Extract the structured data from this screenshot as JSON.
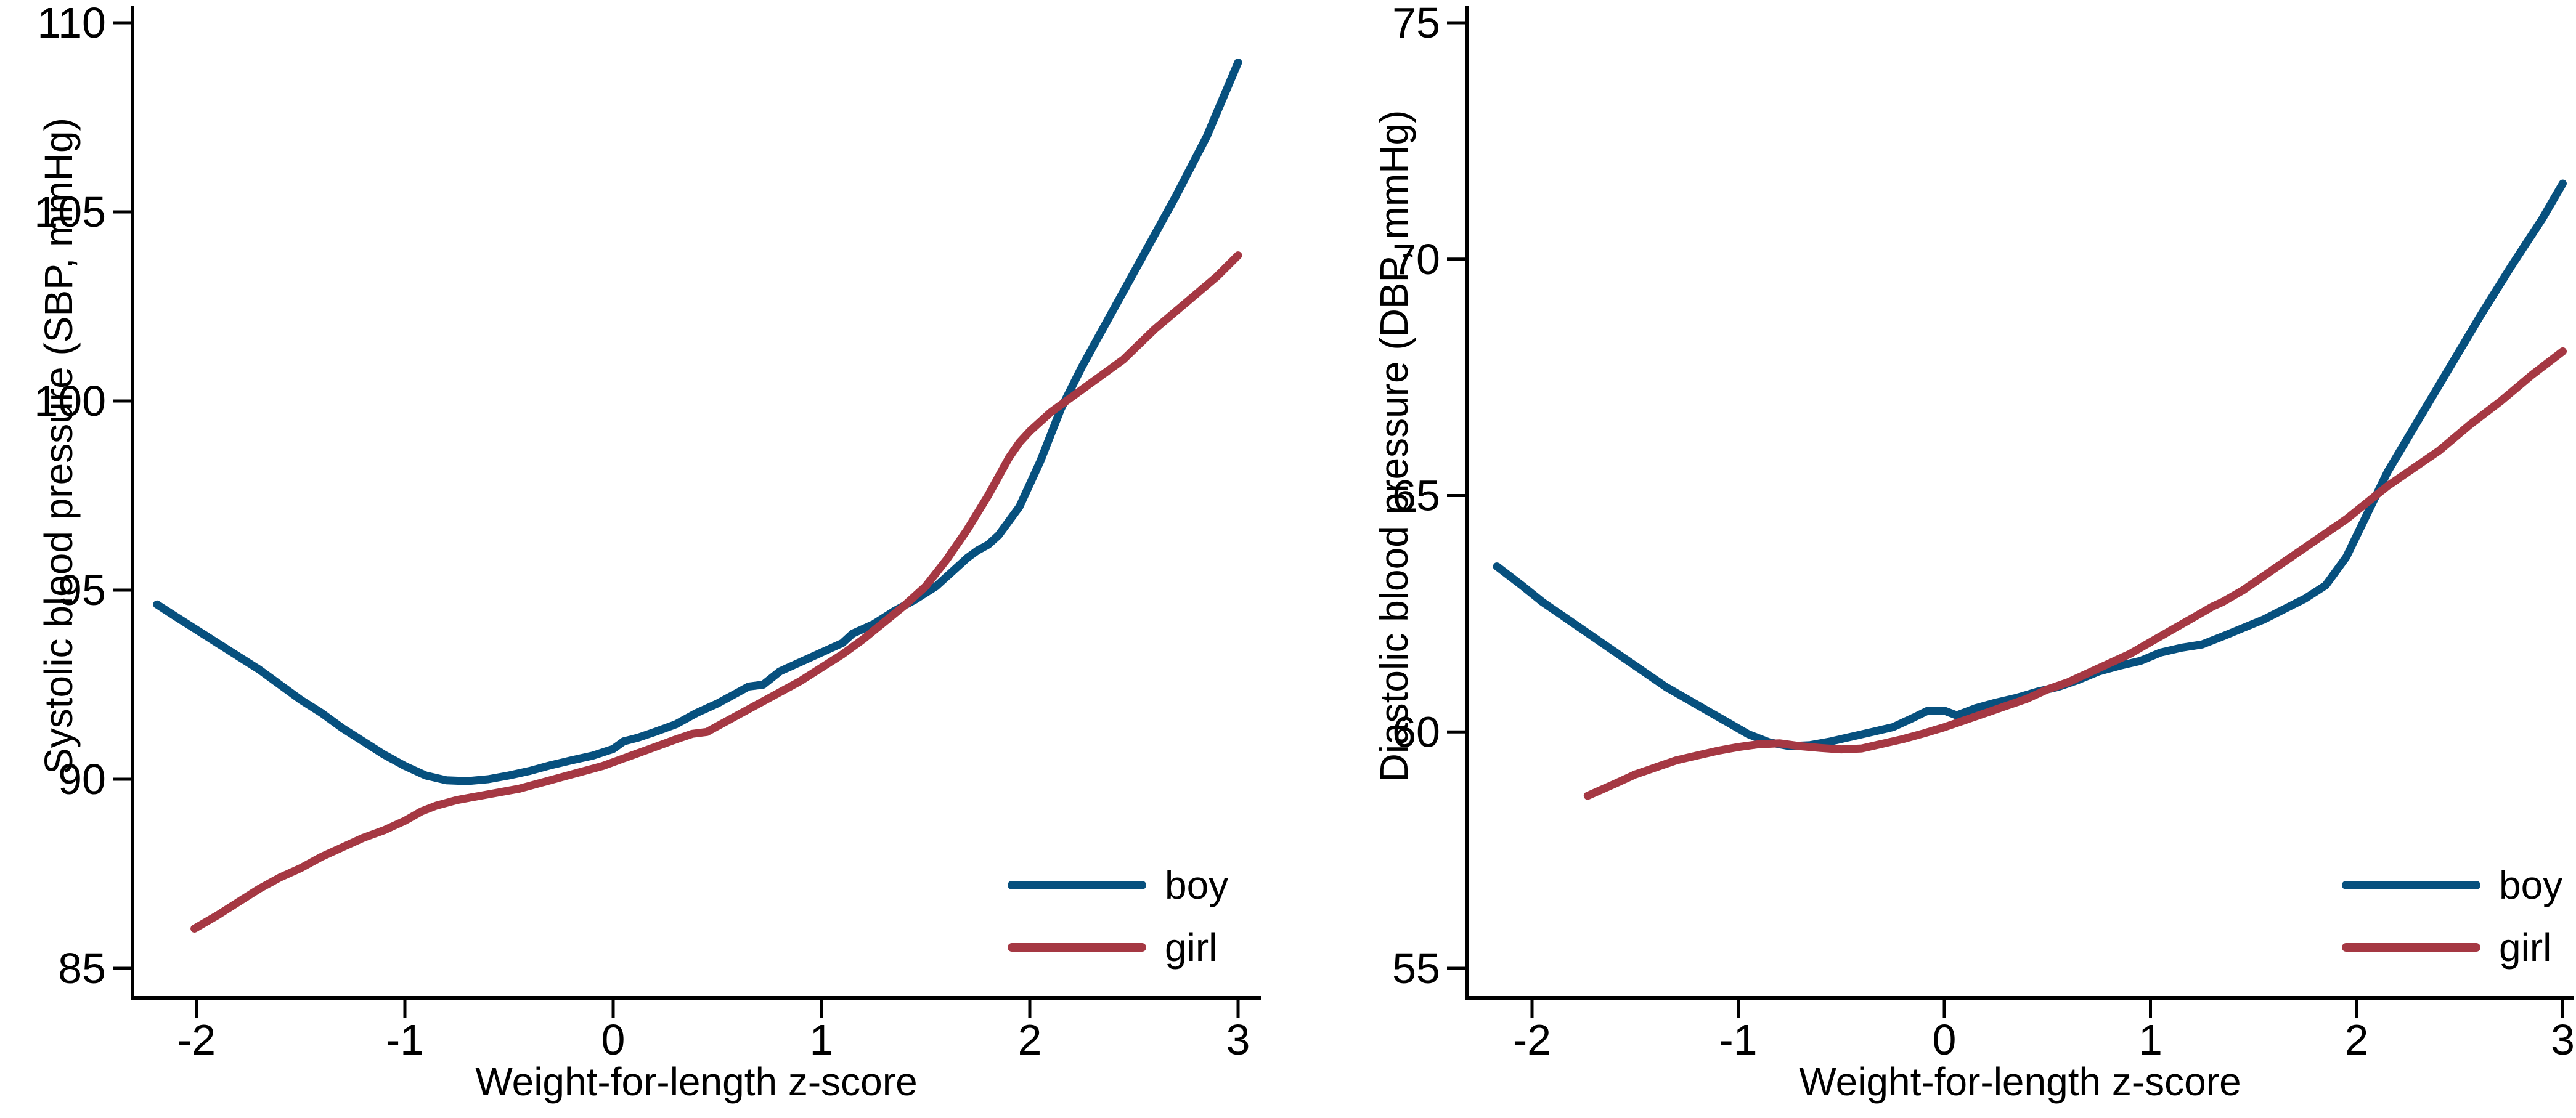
{
  "page": {
    "background": "#ffffff"
  },
  "colors": {
    "boy": "#07507e",
    "girl": "#a53843",
    "axis": "#000000",
    "text": "#000000"
  },
  "chart_data": [
    {
      "id": "sbp",
      "type": "line",
      "title": "",
      "xlabel": "Weight-for-length z-score",
      "ylabel": "Systolic blood pressure (SBP, mmHg)",
      "xlim": [
        -2.31,
        3.11
      ],
      "ylim": [
        84.2,
        110.4
      ],
      "xticks": [
        -2,
        -1,
        0,
        1,
        2,
        3
      ],
      "yticks": [
        85,
        90,
        95,
        100,
        105,
        110
      ],
      "grid": false,
      "legend_position": "inside-bottom-right",
      "series": [
        {
          "name": "boy",
          "color": "#07507e",
          "points": [
            [
              -2.19,
              94.62
            ],
            [
              -2.1,
              94.3
            ],
            [
              -2.0,
              93.95
            ],
            [
              -1.9,
              93.6
            ],
            [
              -1.8,
              93.25
            ],
            [
              -1.7,
              92.9
            ],
            [
              -1.6,
              92.5
            ],
            [
              -1.5,
              92.1
            ],
            [
              -1.4,
              91.75
            ],
            [
              -1.3,
              91.35
            ],
            [
              -1.2,
              91.0
            ],
            [
              -1.1,
              90.65
            ],
            [
              -1.0,
              90.35
            ],
            [
              -0.9,
              90.1
            ],
            [
              -0.8,
              89.97
            ],
            [
              -0.7,
              89.95
            ],
            [
              -0.6,
              90.0
            ],
            [
              -0.5,
              90.1
            ],
            [
              -0.4,
              90.22
            ],
            [
              -0.3,
              90.37
            ],
            [
              -0.2,
              90.5
            ],
            [
              -0.1,
              90.62
            ],
            [
              0.0,
              90.8
            ],
            [
              0.05,
              91.0
            ],
            [
              0.12,
              91.1
            ],
            [
              0.2,
              91.25
            ],
            [
              0.3,
              91.45
            ],
            [
              0.4,
              91.75
            ],
            [
              0.5,
              92.0
            ],
            [
              0.6,
              92.3
            ],
            [
              0.65,
              92.45
            ],
            [
              0.72,
              92.5
            ],
            [
              0.8,
              92.85
            ],
            [
              0.9,
              93.1
            ],
            [
              1.0,
              93.35
            ],
            [
              1.1,
              93.6
            ],
            [
              1.15,
              93.85
            ],
            [
              1.25,
              94.1
            ],
            [
              1.35,
              94.45
            ],
            [
              1.45,
              94.75
            ],
            [
              1.55,
              95.1
            ],
            [
              1.65,
              95.6
            ],
            [
              1.7,
              95.85
            ],
            [
              1.75,
              96.05
            ],
            [
              1.8,
              96.2
            ],
            [
              1.85,
              96.45
            ],
            [
              1.95,
              97.2
            ],
            [
              2.05,
              98.4
            ],
            [
              2.15,
              99.8
            ],
            [
              2.25,
              100.9
            ],
            [
              2.4,
              102.4
            ],
            [
              2.55,
              103.9
            ],
            [
              2.7,
              105.4
            ],
            [
              2.85,
              107.0
            ],
            [
              3.0,
              108.95
            ]
          ]
        },
        {
          "name": "girl",
          "color": "#a53843",
          "points": [
            [
              -2.01,
              86.05
            ],
            [
              -1.9,
              86.4
            ],
            [
              -1.8,
              86.75
            ],
            [
              -1.7,
              87.1
            ],
            [
              -1.6,
              87.4
            ],
            [
              -1.5,
              87.65
            ],
            [
              -1.4,
              87.95
            ],
            [
              -1.3,
              88.2
            ],
            [
              -1.2,
              88.45
            ],
            [
              -1.1,
              88.65
            ],
            [
              -1.0,
              88.9
            ],
            [
              -0.92,
              89.15
            ],
            [
              -0.85,
              89.3
            ],
            [
              -0.75,
              89.45
            ],
            [
              -0.65,
              89.55
            ],
            [
              -0.55,
              89.65
            ],
            [
              -0.45,
              89.75
            ],
            [
              -0.35,
              89.9
            ],
            [
              -0.25,
              90.05
            ],
            [
              -0.15,
              90.2
            ],
            [
              -0.05,
              90.35
            ],
            [
              0.05,
              90.55
            ],
            [
              0.15,
              90.75
            ],
            [
              0.25,
              90.95
            ],
            [
              0.3,
              91.05
            ],
            [
              0.38,
              91.2
            ],
            [
              0.45,
              91.25
            ],
            [
              0.5,
              91.4
            ],
            [
              0.6,
              91.7
            ],
            [
              0.7,
              92.0
            ],
            [
              0.8,
              92.3
            ],
            [
              0.9,
              92.6
            ],
            [
              1.0,
              92.95
            ],
            [
              1.1,
              93.3
            ],
            [
              1.2,
              93.7
            ],
            [
              1.3,
              94.15
            ],
            [
              1.4,
              94.6
            ],
            [
              1.5,
              95.1
            ],
            [
              1.6,
              95.8
            ],
            [
              1.7,
              96.6
            ],
            [
              1.8,
              97.5
            ],
            [
              1.9,
              98.5
            ],
            [
              1.95,
              98.9
            ],
            [
              2.0,
              99.2
            ],
            [
              2.1,
              99.7
            ],
            [
              2.2,
              100.1
            ],
            [
              2.3,
              100.5
            ],
            [
              2.45,
              101.1
            ],
            [
              2.6,
              101.9
            ],
            [
              2.75,
              102.6
            ],
            [
              2.9,
              103.3
            ],
            [
              3.0,
              103.85
            ]
          ]
        }
      ]
    },
    {
      "id": "dbp",
      "type": "line",
      "title": "",
      "xlabel": "Weight-for-length z-score",
      "ylabel": "Diastolic blood pressure (DBP, mmHg)",
      "xlim": [
        -2.32,
        3.05
      ],
      "ylim": [
        54.3,
        75.35
      ],
      "xticks": [
        -2,
        -1,
        0,
        1,
        2,
        3
      ],
      "yticks": [
        55,
        60,
        65,
        70,
        75
      ],
      "grid": false,
      "legend_position": "inside-bottom-right",
      "series": [
        {
          "name": "boy",
          "color": "#07507e",
          "points": [
            [
              -2.17,
              63.5
            ],
            [
              -2.05,
              63.1
            ],
            [
              -1.95,
              62.75
            ],
            [
              -1.85,
              62.45
            ],
            [
              -1.75,
              62.15
            ],
            [
              -1.65,
              61.85
            ],
            [
              -1.55,
              61.55
            ],
            [
              -1.45,
              61.25
            ],
            [
              -1.35,
              60.95
            ],
            [
              -1.25,
              60.7
            ],
            [
              -1.15,
              60.45
            ],
            [
              -1.05,
              60.2
            ],
            [
              -0.95,
              59.95
            ],
            [
              -0.85,
              59.78
            ],
            [
              -0.75,
              59.7
            ],
            [
              -0.65,
              59.72
            ],
            [
              -0.55,
              59.8
            ],
            [
              -0.45,
              59.9
            ],
            [
              -0.35,
              60.0
            ],
            [
              -0.25,
              60.1
            ],
            [
              -0.15,
              60.3
            ],
            [
              -0.08,
              60.45
            ],
            [
              0.0,
              60.45
            ],
            [
              0.06,
              60.35
            ],
            [
              0.15,
              60.5
            ],
            [
              0.25,
              60.62
            ],
            [
              0.35,
              60.72
            ],
            [
              0.45,
              60.85
            ],
            [
              0.55,
              60.95
            ],
            [
              0.65,
              61.1
            ],
            [
              0.75,
              61.28
            ],
            [
              0.85,
              61.4
            ],
            [
              0.95,
              61.5
            ],
            [
              1.05,
              61.68
            ],
            [
              1.15,
              61.78
            ],
            [
              1.25,
              61.85
            ],
            [
              1.35,
              62.02
            ],
            [
              1.45,
              62.2
            ],
            [
              1.55,
              62.38
            ],
            [
              1.65,
              62.6
            ],
            [
              1.75,
              62.82
            ],
            [
              1.85,
              63.1
            ],
            [
              1.95,
              63.7
            ],
            [
              2.05,
              64.6
            ],
            [
              2.15,
              65.5
            ],
            [
              2.3,
              66.6
            ],
            [
              2.45,
              67.7
            ],
            [
              2.6,
              68.8
            ],
            [
              2.75,
              69.85
            ],
            [
              2.9,
              70.85
            ],
            [
              3.0,
              71.6
            ]
          ]
        },
        {
          "name": "girl",
          "color": "#a53843",
          "points": [
            [
              -1.73,
              58.65
            ],
            [
              -1.6,
              58.9
            ],
            [
              -1.5,
              59.1
            ],
            [
              -1.4,
              59.25
            ],
            [
              -1.3,
              59.4
            ],
            [
              -1.2,
              59.5
            ],
            [
              -1.1,
              59.6
            ],
            [
              -1.0,
              59.68
            ],
            [
              -0.9,
              59.74
            ],
            [
              -0.8,
              59.76
            ],
            [
              -0.7,
              59.7
            ],
            [
              -0.6,
              59.66
            ],
            [
              -0.5,
              59.63
            ],
            [
              -0.4,
              59.65
            ],
            [
              -0.3,
              59.75
            ],
            [
              -0.2,
              59.85
            ],
            [
              -0.1,
              59.97
            ],
            [
              0.0,
              60.1
            ],
            [
              0.1,
              60.25
            ],
            [
              0.2,
              60.4
            ],
            [
              0.3,
              60.55
            ],
            [
              0.4,
              60.7
            ],
            [
              0.5,
              60.9
            ],
            [
              0.6,
              61.05
            ],
            [
              0.7,
              61.25
            ],
            [
              0.8,
              61.45
            ],
            [
              0.9,
              61.65
            ],
            [
              1.0,
              61.9
            ],
            [
              1.1,
              62.15
            ],
            [
              1.2,
              62.4
            ],
            [
              1.3,
              62.65
            ],
            [
              1.35,
              62.75
            ],
            [
              1.45,
              63.0
            ],
            [
              1.55,
              63.3
            ],
            [
              1.65,
              63.6
            ],
            [
              1.75,
              63.9
            ],
            [
              1.85,
              64.2
            ],
            [
              1.95,
              64.5
            ],
            [
              2.05,
              64.85
            ],
            [
              2.15,
              65.2
            ],
            [
              2.25,
              65.5
            ],
            [
              2.4,
              65.95
            ],
            [
              2.55,
              66.5
            ],
            [
              2.7,
              67.0
            ],
            [
              2.85,
              67.55
            ],
            [
              3.0,
              68.05
            ]
          ]
        }
      ]
    }
  ]
}
